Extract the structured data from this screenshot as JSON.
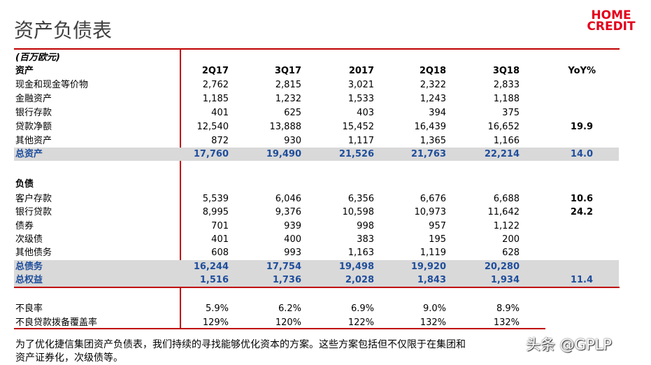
{
  "header": {
    "title": "资产负债表",
    "logo": [
      "HOME",
      "CREDIT"
    ]
  },
  "table": {
    "unit": "(百万欧元)",
    "columns": [
      "2Q17",
      "3Q17",
      "2017",
      "2Q18",
      "3Q18",
      "YoY%"
    ],
    "sections": [
      {
        "title": "资产",
        "rows": [
          {
            "label": "现金和现金等价物",
            "values": [
              "2,762",
              "2,815",
              "3,021",
              "2,322",
              "2,833"
            ]
          },
          {
            "label": "金融资产",
            "values": [
              "1,185",
              "1,232",
              "1,533",
              "1,243",
              "1,188"
            ]
          },
          {
            "label": "银行存款",
            "values": [
              "401",
              "625",
              "403",
              "394",
              "375"
            ]
          },
          {
            "label": "贷款净额",
            "values": [
              "12,540",
              "13,888",
              "15,452",
              "16,439",
              "16,652"
            ],
            "yoy": "19.9"
          },
          {
            "label": "其他资产",
            "values": [
              "872",
              "930",
              "1,117",
              "1,365",
              "1,166"
            ]
          },
          {
            "label": "总资产",
            "values": [
              "17,760",
              "19,490",
              "21,526",
              "21,763",
              "22,214"
            ],
            "yoy": "14.0",
            "total": true
          }
        ]
      },
      {
        "title": "负债",
        "rows": [
          {
            "label": "客户存款",
            "values": [
              "5,539",
              "6,046",
              "6,356",
              "6,676",
              "6,688"
            ],
            "yoy": "10.6"
          },
          {
            "label": "银行贷款",
            "values": [
              "8,995",
              "9,376",
              "10,598",
              "10,973",
              "11,642"
            ],
            "yoy": "24.2"
          },
          {
            "label": "债券",
            "values": [
              "701",
              "939",
              "998",
              "957",
              "1,122"
            ]
          },
          {
            "label": "次级债",
            "values": [
              "401",
              "400",
              "383",
              "195",
              "200"
            ]
          },
          {
            "label": "其他债务",
            "values": [
              "608",
              "993",
              "1,163",
              "1,119",
              "628"
            ]
          },
          {
            "label": "总债务",
            "values": [
              "16,244",
              "17,754",
              "19,498",
              "19,920",
              "20,280"
            ],
            "total": true
          },
          {
            "label": "总权益",
            "values": [
              "1,516",
              "1,736",
              "2,028",
              "1,843",
              "1,934"
            ],
            "yoy": "11.4",
            "total": true
          }
        ]
      },
      {
        "rows": [
          {
            "label": "不良率",
            "values": [
              "5.9%",
              "6.2%",
              "6.9%",
              "9.0%",
              "8.9%"
            ]
          },
          {
            "label": "不良贷款拨备覆盖率",
            "values": [
              "129%",
              "120%",
              "122%",
              "132%",
              "132%"
            ]
          }
        ]
      }
    ]
  },
  "footer": [
    "为了优化捷信集团资产负债表，我们持续的寻找能够优化资本的方案。这些方案包括但不仅限于在集团和",
    "资产证券化，次级债等。"
  ],
  "watermark": "头条 @GPLP"
}
